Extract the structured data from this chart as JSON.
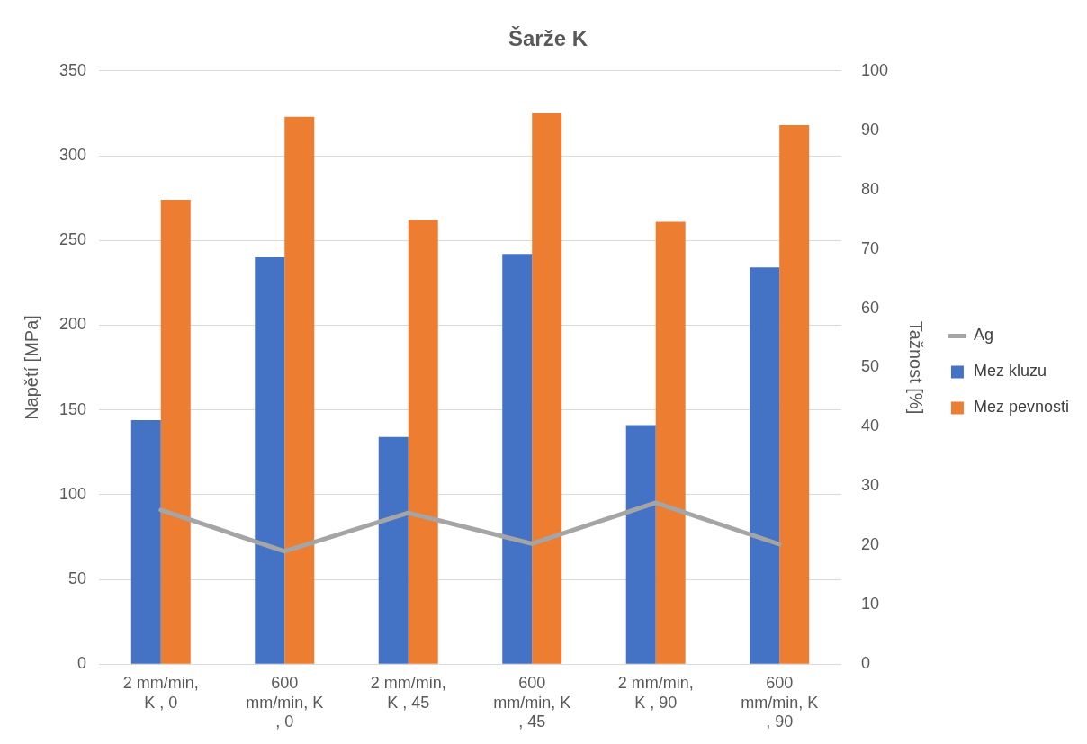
{
  "chart_data": {
    "type": "bar",
    "title": "Šarže K",
    "ylabel": "Napětí [MPa]",
    "y2label": "Tažnost [%]",
    "categories": [
      "2 mm/min, K , 0",
      "600 mm/min, K , 0",
      "2 mm/min, K , 45",
      "600 mm/min, K , 45",
      "2 mm/min, K , 90",
      "600 mm/min, K , 90"
    ],
    "series": [
      {
        "name": "Mez kluzu",
        "color": "#4472c4",
        "values": [
          144,
          240,
          134,
          242,
          141,
          234
        ]
      },
      {
        "name": "Mez pevnosti",
        "color": "#ed7d31",
        "values": [
          274,
          323,
          262,
          325,
          261,
          318
        ]
      },
      {
        "name": "Ag",
        "type": "line",
        "axis": "y2",
        "color": "#a5a5a5",
        "values": [
          26,
          19,
          25.5,
          20.3,
          27.2,
          20.2
        ]
      }
    ],
    "ylim": [
      0,
      350
    ],
    "yticks": [
      0,
      50,
      100,
      150,
      200,
      250,
      300,
      350
    ],
    "y2lim": [
      0,
      100
    ],
    "y2ticks": [
      0,
      10,
      20,
      30,
      40,
      50,
      60,
      70,
      80,
      90,
      100
    ],
    "grid": "y",
    "legend": "right",
    "marker": "none"
  }
}
